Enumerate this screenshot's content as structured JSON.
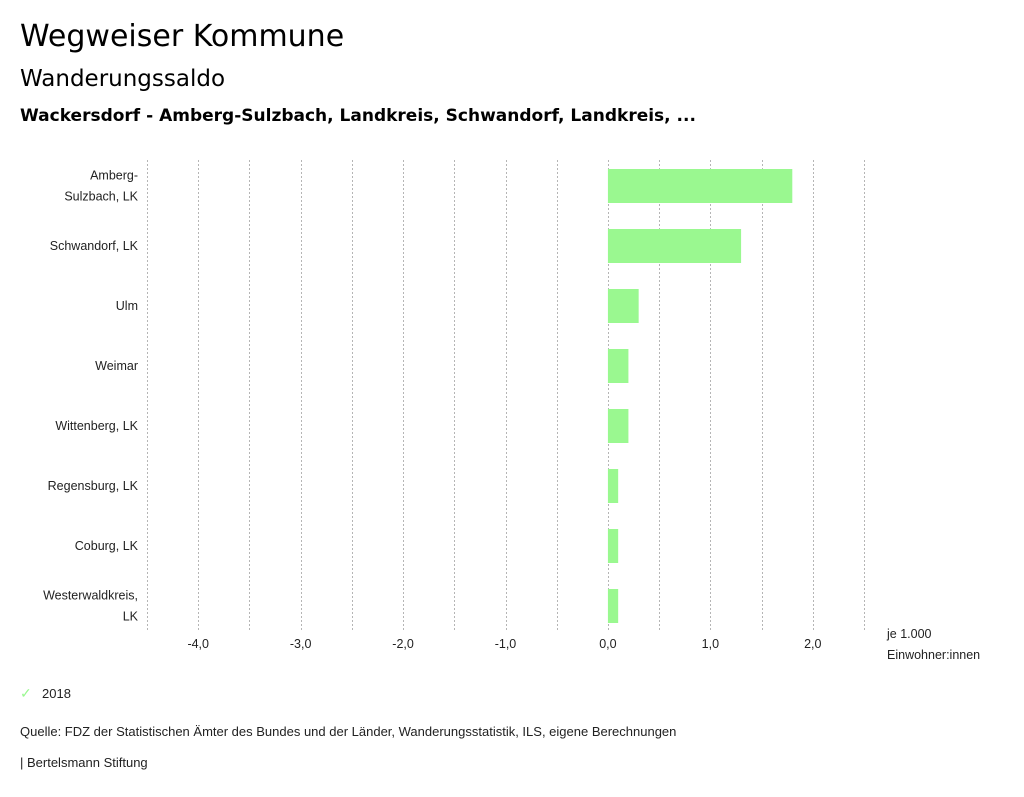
{
  "header": {
    "title": "Wegweiser Kommune",
    "subtitle": "Wanderungssaldo",
    "selection": "Wackersdorf - Amberg-Sulzbach, Landkreis, Schwandorf, Landkreis, ..."
  },
  "chart_data": {
    "type": "bar",
    "orientation": "horizontal",
    "title": "Wanderungssaldo",
    "categories": [
      [
        "Amberg-",
        "Sulzbach, LK"
      ],
      [
        "Schwandorf, LK"
      ],
      [
        "Ulm"
      ],
      [
        "Weimar"
      ],
      [
        "Wittenberg, LK"
      ],
      [
        "Regensburg, LK"
      ],
      [
        "Coburg, LK"
      ],
      [
        "Westerwaldkreis,",
        "LK"
      ]
    ],
    "series": [
      {
        "name": "2018",
        "color": "#9af890",
        "values": [
          1.8,
          1.3,
          0.3,
          0.2,
          0.2,
          0.1,
          0.1,
          0.1
        ]
      }
    ],
    "xlim": [
      -4.5,
      2.5
    ],
    "xticks": [
      -4,
      -3,
      -2,
      -1,
      0,
      1,
      2
    ],
    "xtick_labels": [
      "-4,0",
      "-3,0",
      "-2,0",
      "-1,0",
      "0,0",
      "1,0",
      "2,0"
    ],
    "grid_step": 0.5,
    "grid": true,
    "xlabel": [
      "je 1.000",
      "Einwohner:innen"
    ],
    "legend_position": "bottom-left"
  },
  "legend": {
    "items": [
      {
        "label": "2018",
        "icon": "check-icon",
        "color": "#9af890"
      }
    ]
  },
  "footer": {
    "source": "Quelle: FDZ der Statistischen Ämter des Bundes und der Länder, Wanderungsstatistik, ILS, eigene Berechnungen",
    "credit": "| Bertelsmann Stiftung"
  }
}
